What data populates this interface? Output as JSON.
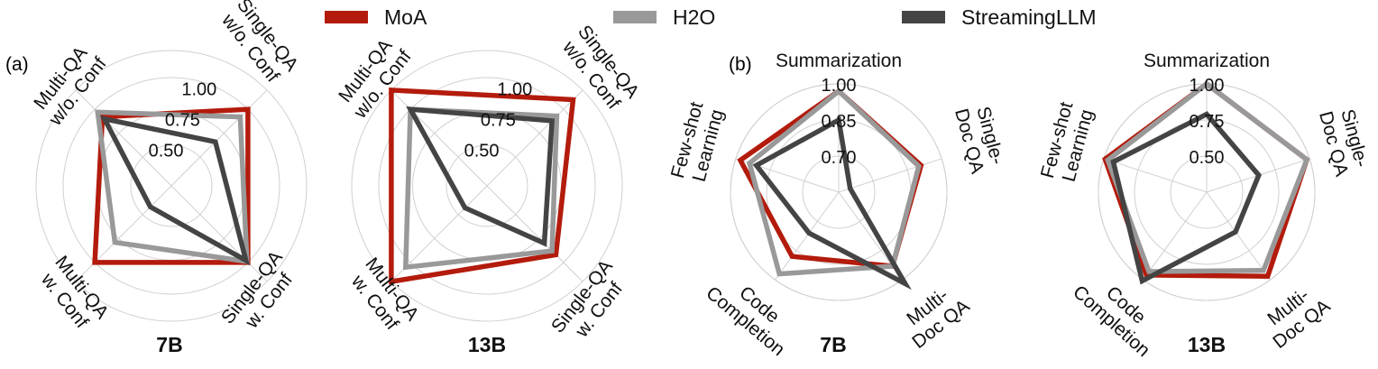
{
  "legend": {
    "entries": [
      {
        "name": "MoA",
        "color": "#b31b0c"
      },
      {
        "name": "H2O",
        "color": "#999999"
      },
      {
        "name": "StreamingLLM",
        "color": "#444444"
      }
    ]
  },
  "panel_labels": {
    "a": "(a)",
    "b": "(b)"
  },
  "chart_data": [
    {
      "type": "radar",
      "title": "7B",
      "axes": [
        [
          "Single-QA",
          "w/o. Conf"
        ],
        [
          "Single-QA",
          "w. Conf"
        ],
        [
          "Multi-QA",
          "w. Conf"
        ],
        [
          "Multi-QA",
          "w/o. Conf"
        ]
      ],
      "rlim": [
        0.2,
        1.2
      ],
      "ticks": [
        0.5,
        0.75,
        1.0
      ],
      "tick_labels": [
        "0.50",
        "0.75",
        "1.00"
      ],
      "grid": true,
      "series": [
        {
          "name": "MoA",
          "values": [
            1.0,
            1.0,
            1.0,
            0.92
          ]
        },
        {
          "name": "H2O",
          "values": [
            0.92,
            0.99,
            0.79,
            0.97
          ]
        },
        {
          "name": "StreamingLLM",
          "values": [
            0.66,
            0.98,
            0.42,
            0.9
          ]
        }
      ]
    },
    {
      "type": "radar",
      "title": "13B",
      "axes": [
        [
          "Single-QA",
          "w/o. Conf"
        ],
        [
          "Single-QA",
          "w. Conf"
        ],
        [
          "Multi-QA",
          "w. Conf"
        ],
        [
          "Multi-QA",
          "w/o. Conf"
        ]
      ],
      "rlim": [
        0.2,
        1.2
      ],
      "ticks": [
        0.5,
        0.75,
        1.0
      ],
      "tick_labels": [
        "0.50",
        "0.75",
        "1.00"
      ],
      "grid": true,
      "series": [
        {
          "name": "MoA",
          "values": [
            1.1,
            0.92,
            1.2,
            1.2
          ]
        },
        {
          "name": "H2O",
          "values": [
            0.93,
            0.88,
            1.05,
            1.0
          ]
        },
        {
          "name": "StreamingLLM",
          "values": [
            0.88,
            0.8,
            0.43,
            1.0
          ]
        }
      ]
    },
    {
      "type": "radar",
      "title": "7B",
      "axes": [
        [
          "Summarization"
        ],
        [
          "Single-",
          "Doc QA"
        ],
        [
          "Multi-",
          "Doc QA"
        ],
        [
          "Code",
          "Completion"
        ],
        [
          "Few-shot",
          "Learning"
        ]
      ],
      "rlim": [
        0.55,
        1.0
      ],
      "ticks": [
        0.7,
        0.85,
        1.0
      ],
      "tick_labels": [
        "0.70",
        "0.85",
        "1.00"
      ],
      "grid": true,
      "series": [
        {
          "name": "MoA",
          "values": [
            0.97,
            0.91,
            0.93,
            0.88,
            0.98
          ]
        },
        {
          "name": "H2O",
          "values": [
            0.97,
            0.9,
            0.93,
            0.97,
            0.94
          ]
        },
        {
          "name": "StreamingLLM",
          "values": [
            0.85,
            0.6,
            1.02,
            0.76,
            0.91
          ]
        }
      ]
    },
    {
      "type": "radar",
      "title": "13B",
      "axes": [
        [
          "Summarization"
        ],
        [
          "Single-",
          "Doc QA"
        ],
        [
          "Multi-",
          "Doc QA"
        ],
        [
          "Code",
          "Completion"
        ],
        [
          "Few-shot",
          "Learning"
        ]
      ],
      "rlim": [
        0.25,
        1.0
      ],
      "ticks": [
        0.5,
        0.75,
        1.0
      ],
      "tick_labels": [
        "0.50",
        "0.75",
        "1.00"
      ],
      "grid": true,
      "series": [
        {
          "name": "MoA",
          "values": [
            1.0,
            0.98,
            0.97,
            0.96,
            0.99
          ]
        },
        {
          "name": "H2O",
          "values": [
            1.0,
            0.98,
            0.92,
            0.93,
            0.97
          ]
        },
        {
          "name": "StreamingLLM",
          "values": [
            0.79,
            0.63,
            0.59,
            1.01,
            0.93
          ]
        }
      ]
    }
  ]
}
